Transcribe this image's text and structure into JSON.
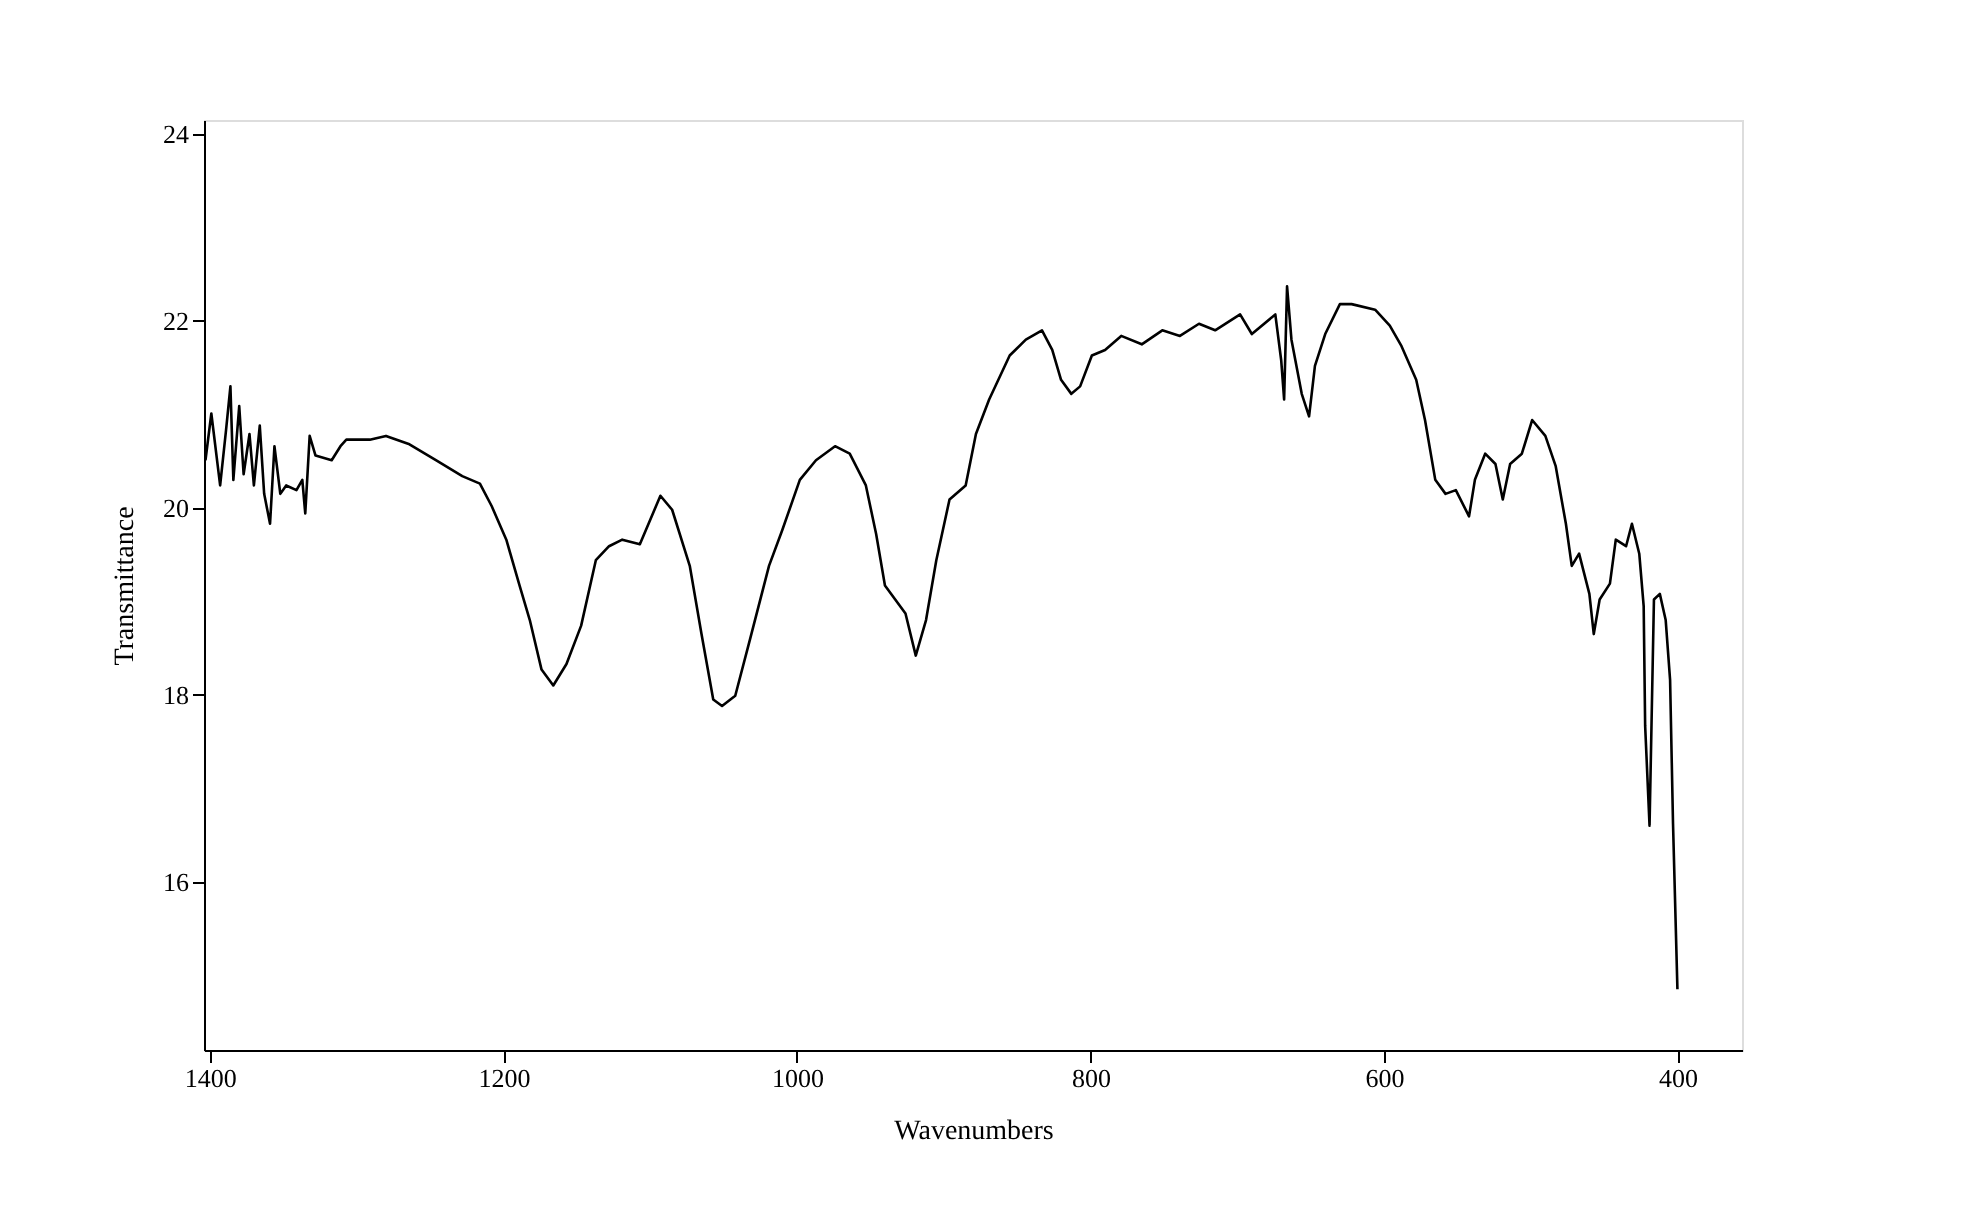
{
  "chart_data": {
    "type": "line",
    "xlabel": "Wavenumbers",
    "ylabel": "Transmittance",
    "xlim": [
      1404,
      356
    ],
    "ylim": [
      14.2,
      24.15
    ],
    "xticks": [
      1400,
      1200,
      1000,
      800,
      600,
      400
    ],
    "yticks": [
      16,
      18,
      20,
      22,
      24
    ],
    "grid": false,
    "marker": "none",
    "line_style": "solid",
    "series": [
      {
        "color": "#000000",
        "x": [
          1403,
          1399,
          1393,
          1389,
          1386,
          1384,
          1380,
          1377,
          1373,
          1370,
          1366,
          1363,
          1359,
          1356,
          1352,
          1348,
          1341,
          1337,
          1335,
          1332,
          1328,
          1317,
          1311,
          1307,
          1291,
          1280,
          1264,
          1246,
          1228,
          1216,
          1208,
          1198,
          1189,
          1182,
          1174,
          1166,
          1157,
          1147,
          1137,
          1128,
          1119,
          1107,
          1093,
          1085,
          1073,
          1065,
          1057,
          1051,
          1042,
          1032,
          1019,
          1010,
          998,
          987,
          974,
          964,
          953,
          946,
          940,
          933,
          926,
          919,
          912,
          905,
          896,
          885,
          878,
          869,
          855,
          844,
          833,
          826,
          820,
          813,
          807,
          799,
          790,
          779,
          765,
          751,
          739,
          726,
          715,
          698,
          690,
          674,
          670,
          668,
          666,
          663,
          656,
          651,
          647,
          640,
          630,
          622,
          606,
          596,
          588,
          578,
          572,
          565,
          558,
          551,
          542,
          538,
          531,
          524,
          519,
          514,
          506,
          499,
          490,
          483,
          476,
          472,
          467,
          460,
          457,
          453,
          446,
          442,
          435,
          431,
          426,
          423,
          422,
          419,
          416,
          412,
          408,
          405,
          403,
          400
        ],
        "values": [
          20.51,
          21.01,
          20.24,
          20.83,
          21.3,
          20.3,
          21.09,
          20.36,
          20.79,
          20.24,
          20.88,
          20.15,
          19.83,
          20.66,
          20.15,
          20.24,
          20.19,
          20.3,
          19.94,
          20.77,
          20.56,
          20.51,
          20.66,
          20.73,
          20.73,
          20.77,
          20.68,
          20.51,
          20.34,
          20.26,
          20.02,
          19.66,
          19.17,
          18.8,
          18.27,
          18.1,
          18.33,
          18.74,
          19.44,
          19.59,
          19.66,
          19.61,
          20.13,
          19.98,
          19.38,
          18.65,
          17.95,
          17.88,
          17.99,
          18.59,
          19.38,
          19.76,
          20.3,
          20.51,
          20.66,
          20.58,
          20.24,
          19.72,
          19.17,
          19.02,
          18.87,
          18.42,
          18.8,
          19.44,
          20.09,
          20.24,
          20.79,
          21.16,
          21.63,
          21.8,
          21.9,
          21.69,
          21.37,
          21.22,
          21.3,
          21.63,
          21.69,
          21.84,
          21.75,
          21.9,
          21.84,
          21.97,
          21.9,
          22.07,
          21.86,
          22.07,
          21.58,
          21.16,
          22.37,
          21.8,
          21.22,
          20.98,
          21.52,
          21.86,
          22.18,
          22.18,
          22.12,
          21.95,
          21.73,
          21.37,
          20.94,
          20.3,
          20.15,
          20.19,
          19.91,
          20.3,
          20.58,
          20.47,
          20.09,
          20.47,
          20.58,
          20.94,
          20.77,
          20.45,
          19.83,
          19.38,
          19.51,
          19.08,
          18.65,
          19.02,
          19.19,
          19.66,
          19.59,
          19.83,
          19.51,
          18.95,
          17.67,
          16.6,
          19.02,
          19.08,
          18.8,
          18.16,
          16.62,
          14.85
        ]
      }
    ]
  }
}
